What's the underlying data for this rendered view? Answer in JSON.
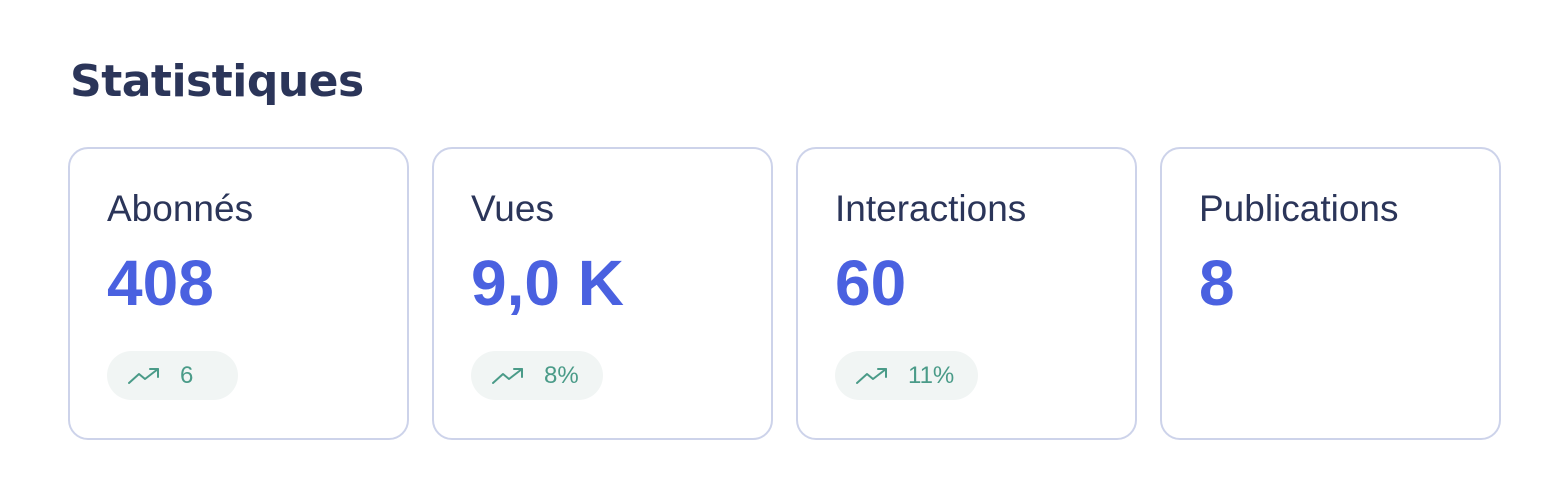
{
  "section": {
    "title": "Statistiques"
  },
  "colors": {
    "title": "#2b3559",
    "value": "#4a61e0",
    "trend": "#4a9b88",
    "card_border": "#cdd3ea",
    "pill_background": "#f1f5f4"
  },
  "stats": [
    {
      "label": "Abonnés",
      "value": "408",
      "trend": {
        "icon": "trending-up-icon",
        "value": "6"
      }
    },
    {
      "label": "Vues",
      "value": "9,0 K",
      "trend": {
        "icon": "trending-up-icon",
        "value": "8%"
      }
    },
    {
      "label": "Interactions",
      "value": "60",
      "trend": {
        "icon": "trending-up-icon",
        "value": "11%"
      }
    },
    {
      "label": "Publications",
      "value": "8",
      "trend": null
    }
  ]
}
